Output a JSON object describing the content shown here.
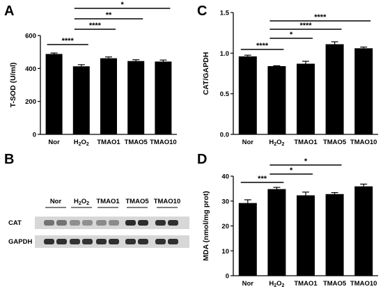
{
  "panels": [
    {
      "letter": "A"
    },
    {
      "letter": "B"
    },
    {
      "letter": "C"
    },
    {
      "letter": "D"
    }
  ],
  "chart_data": [
    {
      "panel": "A",
      "type": "bar",
      "categories": [
        "Nor",
        "H2O2",
        "TMAO1",
        "TMAO5",
        "TMAO10"
      ],
      "values": [
        488,
        413,
        462,
        445,
        442
      ],
      "errors": [
        6,
        10,
        8,
        8,
        9
      ],
      "ylabel": "T-SOD (U/ml)",
      "ylim": [
        0,
        600
      ],
      "yticks": [
        "0",
        "200",
        "400",
        "600"
      ],
      "significance": [
        {
          "from": 0,
          "to": 1,
          "label": "****"
        },
        {
          "from": 1,
          "to": 2,
          "label": "****"
        },
        {
          "from": 1,
          "to": 3,
          "label": "**"
        },
        {
          "from": 1,
          "to": 4,
          "label": "*"
        }
      ]
    },
    {
      "panel": "C",
      "type": "bar",
      "categories": [
        "Nor",
        "H2O2",
        "TMAO1",
        "TMAO5",
        "TMAO10"
      ],
      "values": [
        0.96,
        0.84,
        0.87,
        1.11,
        1.06
      ],
      "errors": [
        0.015,
        0.005,
        0.03,
        0.03,
        0.015
      ],
      "ylabel": "CAT/GAPDH",
      "ylim": [
        0,
        1.5
      ],
      "yticks": [
        "0.0",
        "0.5",
        "1.0",
        "1.5"
      ],
      "significance": [
        {
          "from": 0,
          "to": 1,
          "label": "****"
        },
        {
          "from": 1,
          "to": 2,
          "label": "*"
        },
        {
          "from": 1,
          "to": 3,
          "label": "****"
        },
        {
          "from": 1,
          "to": 4,
          "label": "****"
        }
      ]
    },
    {
      "panel": "D",
      "type": "bar",
      "categories": [
        "Nor",
        "H2O2",
        "TMAO1",
        "TMAO5",
        "TMAO10"
      ],
      "values": [
        29.2,
        34.8,
        32.3,
        32.8,
        35.9
      ],
      "errors": [
        1.3,
        0.7,
        1.3,
        0.6,
        0.9
      ],
      "ylabel": "MDA (nmol/mg prot)",
      "ylim": [
        0,
        40
      ],
      "yticks": [
        "0",
        "10",
        "20",
        "30",
        "40"
      ],
      "significance": [
        {
          "from": 0,
          "to": 1,
          "label": "***"
        },
        {
          "from": 1,
          "to": 2,
          "label": "*"
        },
        {
          "from": 1,
          "to": 3,
          "label": "*"
        }
      ]
    }
  ],
  "blot": {
    "lanes": [
      "Nor",
      "H2O2",
      "TMAO1",
      "TMAO5",
      "TMAO10"
    ],
    "rows": [
      {
        "label": "CAT",
        "intensity": [
          0.45,
          0.3,
          0.32,
          0.82,
          0.8
        ]
      },
      {
        "label": "GAPDH",
        "intensity": [
          0.8,
          0.78,
          0.8,
          0.8,
          0.8
        ]
      }
    ]
  }
}
